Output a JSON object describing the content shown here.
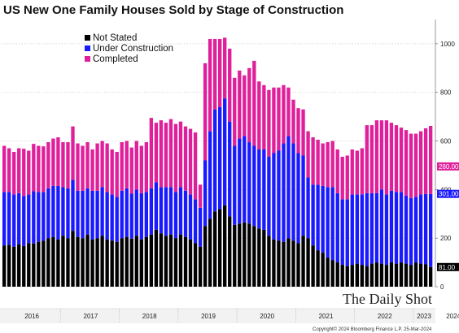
{
  "chart_data": {
    "type": "bar",
    "stacked": true,
    "title": "US New One Family Houses Sold by Stage of Construction",
    "xlabel": "",
    "ylabel": "",
    "ylim": [
      0,
      1100
    ],
    "yticks": [
      0,
      200,
      400,
      600,
      800,
      1000
    ],
    "years": [
      "2016",
      "2017",
      "2018",
      "2019",
      "2020",
      "2021",
      "2022",
      "2023",
      "2024"
    ],
    "legend_position": "top-left",
    "grid": true,
    "colors": {
      "not_stated": "#000000",
      "under_construction": "#1a1aff",
      "completed": "#e0209a"
    },
    "series": [
      {
        "name": "Not Stated",
        "values": [
          170,
          172,
          165,
          175,
          168,
          180,
          178,
          185,
          190,
          200,
          205,
          195,
          210,
          200,
          230,
          205,
          200,
          215,
          195,
          200,
          210,
          195,
          190,
          185,
          200,
          205,
          198,
          210,
          195,
          205,
          215,
          235,
          220,
          210,
          215,
          200,
          215,
          205,
          195,
          180,
          165,
          250,
          280,
          310,
          320,
          335,
          290,
          255,
          260,
          265,
          260,
          250,
          240,
          235,
          210,
          195,
          190,
          185,
          200,
          190,
          180,
          210,
          200,
          170,
          150,
          140,
          120,
          110,
          100,
          90,
          85,
          90,
          95,
          90,
          85,
          95,
          100,
          95,
          90,
          100,
          95,
          100,
          95,
          90,
          100,
          95,
          92,
          81
        ]
      },
      {
        "name": "Under Construction",
        "values": [
          220,
          218,
          215,
          210,
          205,
          200,
          215,
          205,
          200,
          205,
          210,
          220,
          200,
          205,
          210,
          190,
          195,
          190,
          200,
          195,
          200,
          195,
          190,
          185,
          195,
          200,
          185,
          190,
          190,
          185,
          190,
          195,
          190,
          200,
          195,
          190,
          195,
          190,
          185,
          180,
          160,
          270,
          360,
          420,
          420,
          440,
          390,
          325,
          350,
          355,
          335,
          330,
          325,
          330,
          325,
          355,
          370,
          405,
          420,
          400,
          370,
          330,
          250,
          250,
          270,
          275,
          290,
          300,
          285,
          270,
          275,
          290,
          285,
          290,
          300,
          290,
          285,
          305,
          290,
          295,
          295,
          290,
          280,
          275,
          270,
          285,
          290,
          301
        ]
      },
      {
        "name": "Completed",
        "values": [
          190,
          180,
          175,
          185,
          195,
          180,
          195,
          190,
          188,
          190,
          195,
          200,
          185,
          190,
          220,
          195,
          185,
          190,
          170,
          195,
          190,
          200,
          185,
          185,
          200,
          195,
          190,
          200,
          195,
          205,
          290,
          245,
          275,
          265,
          280,
          280,
          270,
          265,
          270,
          275,
          95,
          400,
          380,
          290,
          280,
          250,
          300,
          280,
          280,
          250,
          305,
          350,
          280,
          265,
          275,
          270,
          260,
          240,
          200,
          180,
          185,
          190,
          190,
          195,
          185,
          175,
          185,
          190,
          180,
          175,
          180,
          185,
          180,
          190,
          280,
          280,
          300,
          285,
          305,
          280,
          275,
          265,
          270,
          265,
          260,
          260,
          270,
          280
        ]
      }
    ],
    "end_labels": [
      "280.00",
      "301.00",
      "81.00"
    ],
    "brand": "The Daily Shot",
    "copyright": "Copyright© 2024 Bloomberg Finance L.P.   25-Mar-2024"
  }
}
